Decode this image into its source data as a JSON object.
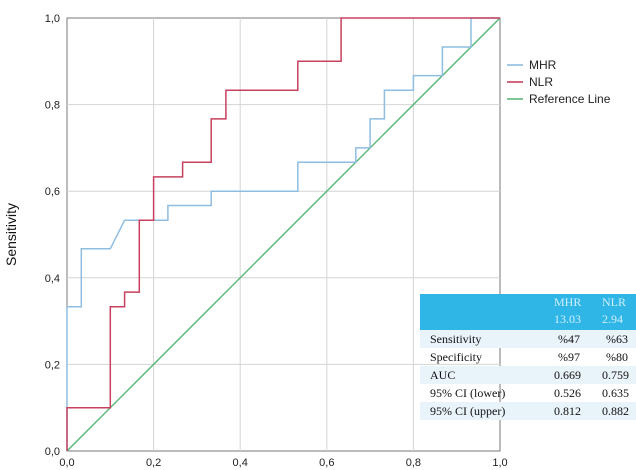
{
  "chart_data": {
    "type": "line",
    "ylabel": "Sensitivity",
    "xlabel": "",
    "xlim": [
      0,
      1
    ],
    "ylim": [
      0,
      1
    ],
    "x_ticks": [
      "0,0",
      "0,2",
      "0,4",
      "0,6",
      "0,8",
      "1,0"
    ],
    "y_ticks": [
      "0,0",
      "0,2",
      "0,4",
      "0,6",
      "0,8",
      "1,0"
    ],
    "grid": true,
    "legend": "right",
    "series": [
      {
        "name": "MHR",
        "color": "#8fbde0",
        "x": [
          0,
          0,
          0.033,
          0.033,
          0.1,
          0.133,
          0.133,
          0.233,
          0.233,
          0.333,
          0.333,
          0.533,
          0.533,
          0.667,
          0.667,
          0.7,
          0.7,
          0.733,
          0.733,
          0.8,
          0.8,
          0.867,
          0.867,
          0.933,
          0.933,
          1
        ],
        "y": [
          0,
          0.333,
          0.333,
          0.467,
          0.467,
          0.533,
          0.533,
          0.533,
          0.567,
          0.567,
          0.6,
          0.6,
          0.667,
          0.667,
          0.7,
          0.7,
          0.767,
          0.767,
          0.833,
          0.833,
          0.867,
          0.867,
          0.933,
          0.933,
          1,
          1
        ]
      },
      {
        "name": "NLR",
        "color": "#c8405e",
        "x": [
          0,
          0,
          0.1,
          0.1,
          0.133,
          0.133,
          0.167,
          0.167,
          0.2,
          0.2,
          0.267,
          0.267,
          0.333,
          0.333,
          0.367,
          0.367,
          0.533,
          0.533,
          0.633,
          0.633,
          1
        ],
        "y": [
          0,
          0.1,
          0.1,
          0.333,
          0.333,
          0.367,
          0.367,
          0.533,
          0.533,
          0.633,
          0.633,
          0.667,
          0.667,
          0.767,
          0.767,
          0.833,
          0.833,
          0.9,
          0.9,
          1,
          1
        ]
      },
      {
        "name": "Reference Line",
        "color": "#5cb87a",
        "x": [
          0,
          1
        ],
        "y": [
          0,
          1
        ]
      }
    ]
  },
  "stats_table": {
    "columns": [
      "MHR",
      "NLR"
    ],
    "cutoffs": [
      "13.03",
      "2.94"
    ],
    "rows": [
      {
        "label": "Sensitivity",
        "values": [
          "%47",
          "%63"
        ]
      },
      {
        "label": "Specificity",
        "values": [
          "%97",
          "%80"
        ]
      },
      {
        "label": "AUC",
        "values": [
          "0.669",
          "0.759"
        ]
      },
      {
        "label": "95% CI (lower)",
        "values": [
          "0.526",
          "0.635"
        ]
      },
      {
        "label": "95% CI (upper)",
        "values": [
          "0.812",
          "0.882"
        ]
      }
    ]
  }
}
